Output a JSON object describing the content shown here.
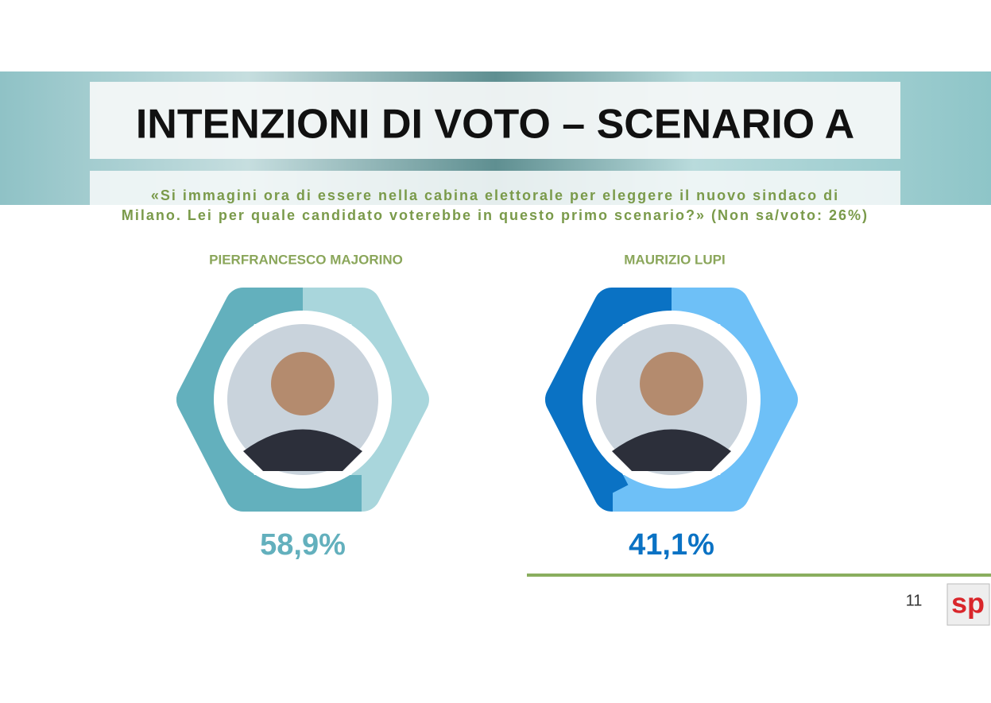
{
  "header": {
    "title": "INTENZIONI DI VOTO – SCENARIO A",
    "question": [
      "«Si immagini ora di essere nella cabina elettorale per eleggere il nuovo sindaco di",
      "Milano. Lei per quale candidato voterebbe in questo primo scenario?» (Non sa/voto: 26%)"
    ]
  },
  "chart_data": [
    {
      "type": "hex-ring",
      "title": "PIERFRANCESCO MAJORINO",
      "values": [
        58.9
      ],
      "value_labels": [
        "58,9%"
      ],
      "color": "#63b0bd",
      "track_color": "#a9d6dc",
      "ylim": [
        0,
        100
      ]
    },
    {
      "type": "hex-ring",
      "title": "MAURIZIO LUPI",
      "values": [
        41.1
      ],
      "value_labels": [
        "41,1%"
      ],
      "color": "#0a72c4",
      "track_color": "#6ec0f7",
      "ylim": [
        0,
        100
      ]
    }
  ],
  "footer": {
    "page": "11",
    "logo": "sp"
  }
}
